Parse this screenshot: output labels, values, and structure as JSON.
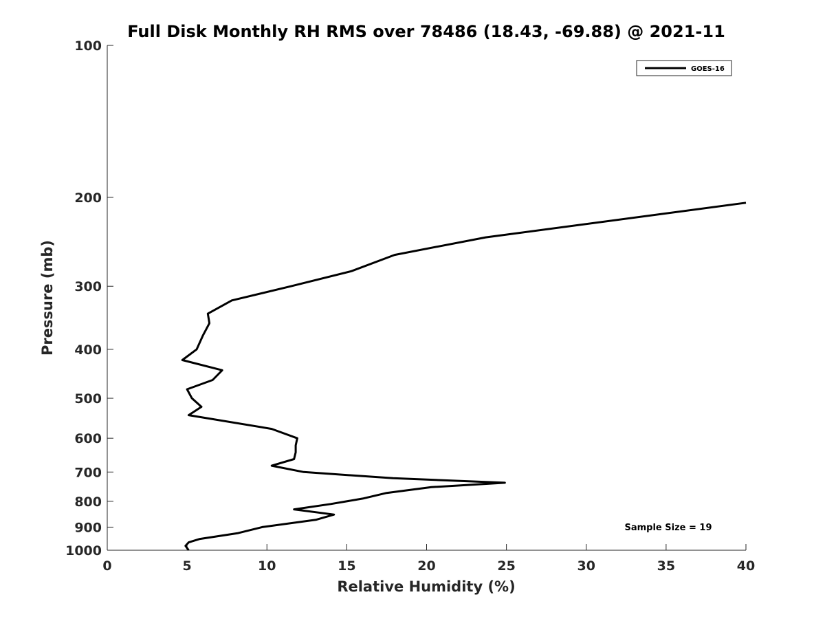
{
  "chart_data": {
    "type": "line",
    "title": "Full Disk Monthly RH RMS over 78486 (18.43, -69.88) @ 2021-11",
    "xlabel": "Relative Humidity (%)",
    "ylabel": "Pressure (mb)",
    "xlim": [
      0,
      40
    ],
    "ylim": [
      100,
      1000
    ],
    "yscale": "log",
    "y_reversed": true,
    "xticks": [
      0,
      5,
      10,
      15,
      20,
      25,
      30,
      35,
      40
    ],
    "yticks": [
      100,
      200,
      300,
      400,
      500,
      600,
      700,
      800,
      900,
      1000
    ],
    "grid": false,
    "legend_position": "top-right",
    "annotation": "Sample Size = 19",
    "series": [
      {
        "name": "GOES-16",
        "color": "#000000",
        "x": [
          40.0,
          23.7,
          18.0,
          15.3,
          11.5,
          7.8,
          6.3,
          6.4,
          6.0,
          5.6,
          4.7,
          7.2,
          6.6,
          5.0,
          5.3,
          5.9,
          5.1,
          10.3,
          11.9,
          11.8,
          11.8,
          11.7,
          10.3,
          12.3,
          17.9,
          24.9,
          20.3,
          17.5,
          16.0,
          14.0,
          11.7,
          14.2,
          13.1,
          9.7,
          8.2,
          5.8,
          5.1,
          4.9,
          5.1
        ],
        "y": [
          205,
          240,
          260,
          280,
          300,
          320,
          340,
          355,
          375,
          400,
          420,
          440,
          460,
          480,
          500,
          520,
          540,
          575,
          600,
          620,
          640,
          660,
          680,
          700,
          720,
          735,
          750,
          770,
          790,
          810,
          830,
          850,
          870,
          900,
          925,
          950,
          965,
          980,
          1000
        ]
      }
    ]
  }
}
